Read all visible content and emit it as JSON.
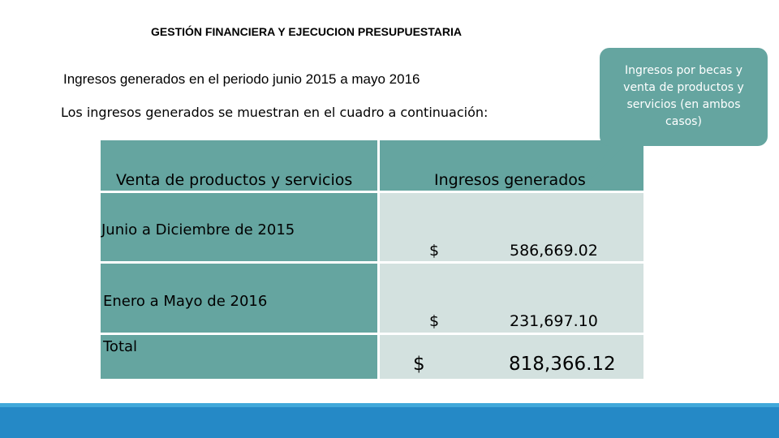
{
  "header": {
    "title": "GESTIÓN FINANCIERA Y  EJECUCION  PRESUPUESTARIA",
    "subtitle": "Ingresos generados en el periodo junio 2015 a mayo 2016",
    "intro": "Los ingresos generados se muestran en el cuadro a continuación:"
  },
  "table": {
    "col1_header": "Venta de productos y servicios",
    "col2_header": "Ingresos generados",
    "rows": [
      {
        "label": "Junio a Diciembre de 2015",
        "currency": "$",
        "amount": "586,669.02"
      },
      {
        "label": "Enero a Mayo de 2016",
        "currency": "$",
        "amount": "231,697.10"
      },
      {
        "label": "Total",
        "currency": "$",
        "amount": "818,366.12"
      }
    ]
  },
  "callout": {
    "text": "Ingresos por becas y venta de productos y servicios (en ambos casos)"
  },
  "colors": {
    "teal": "#65a5a0",
    "light_cell": "#d3e1df",
    "footer_main": "#2589c6",
    "footer_accent": "#41a8da"
  }
}
